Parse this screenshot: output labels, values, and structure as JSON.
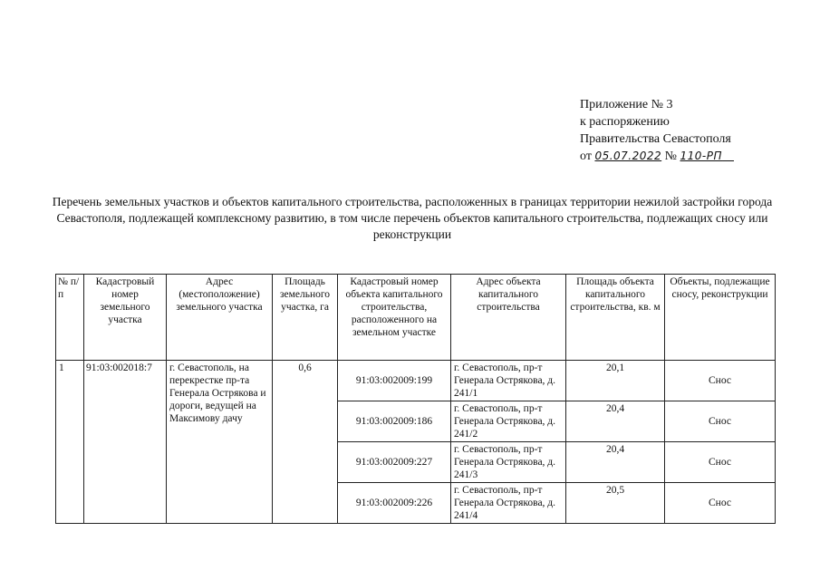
{
  "appendix": {
    "line1": "Приложение № 3",
    "line2": "к распоряжению",
    "line3": "Правительства Севастополя",
    "date_prefix": "от",
    "date": "05.07.2022",
    "number_prefix": "№",
    "number": "110-РП"
  },
  "title": "Перечень земельных участков и объектов капитального строительства, расположенных в границах территории нежилой застройки города Севастополя, подлежащей комплексному развитию, в том числе перечень объектов капитального строительства, подлежащих сносу или реконструкции",
  "table": {
    "headers": [
      "№ п/п",
      "Кадастровый номер земельного участка",
      "Адрес (местоположение) земельного участка",
      "Площадь земельного участка, га",
      "Кадастровый номер объекта капитального строительства, расположенного на земельном участке",
      "Адрес объекта капитального строительства",
      "Площадь объекта капитального строительства, кв. м",
      "Объекты, подлежащие сносу, реконструкции"
    ],
    "parcel": {
      "num": "1",
      "cadastral": "91:03:002018:7",
      "address": "г. Севастополь, на перекрестке пр-та Генерала Острякова и дороги, ведущей на Максимову дачу",
      "area": "0,6"
    },
    "objects": [
      {
        "cadastral": "91:03:002009:199",
        "address": "г. Севастополь, пр-т Генерала Острякова, д. 241/1",
        "area": "20,1",
        "action": "Снос"
      },
      {
        "cadastral": "91:03:002009:186",
        "address": "г. Севастополь, пр-т Генерала Острякова, д. 241/2",
        "area": "20,4",
        "action": "Снос"
      },
      {
        "cadastral": "91:03:002009:227",
        "address": "г. Севастополь, пр-т Генерала Острякова, д. 241/3",
        "area": "20,4",
        "action": "Снос"
      },
      {
        "cadastral": "91:03:002009:226",
        "address": "г. Севастополь, пр-т Генерала Острякова, д. 241/4",
        "area": "20,5",
        "action": "Снос"
      }
    ]
  }
}
